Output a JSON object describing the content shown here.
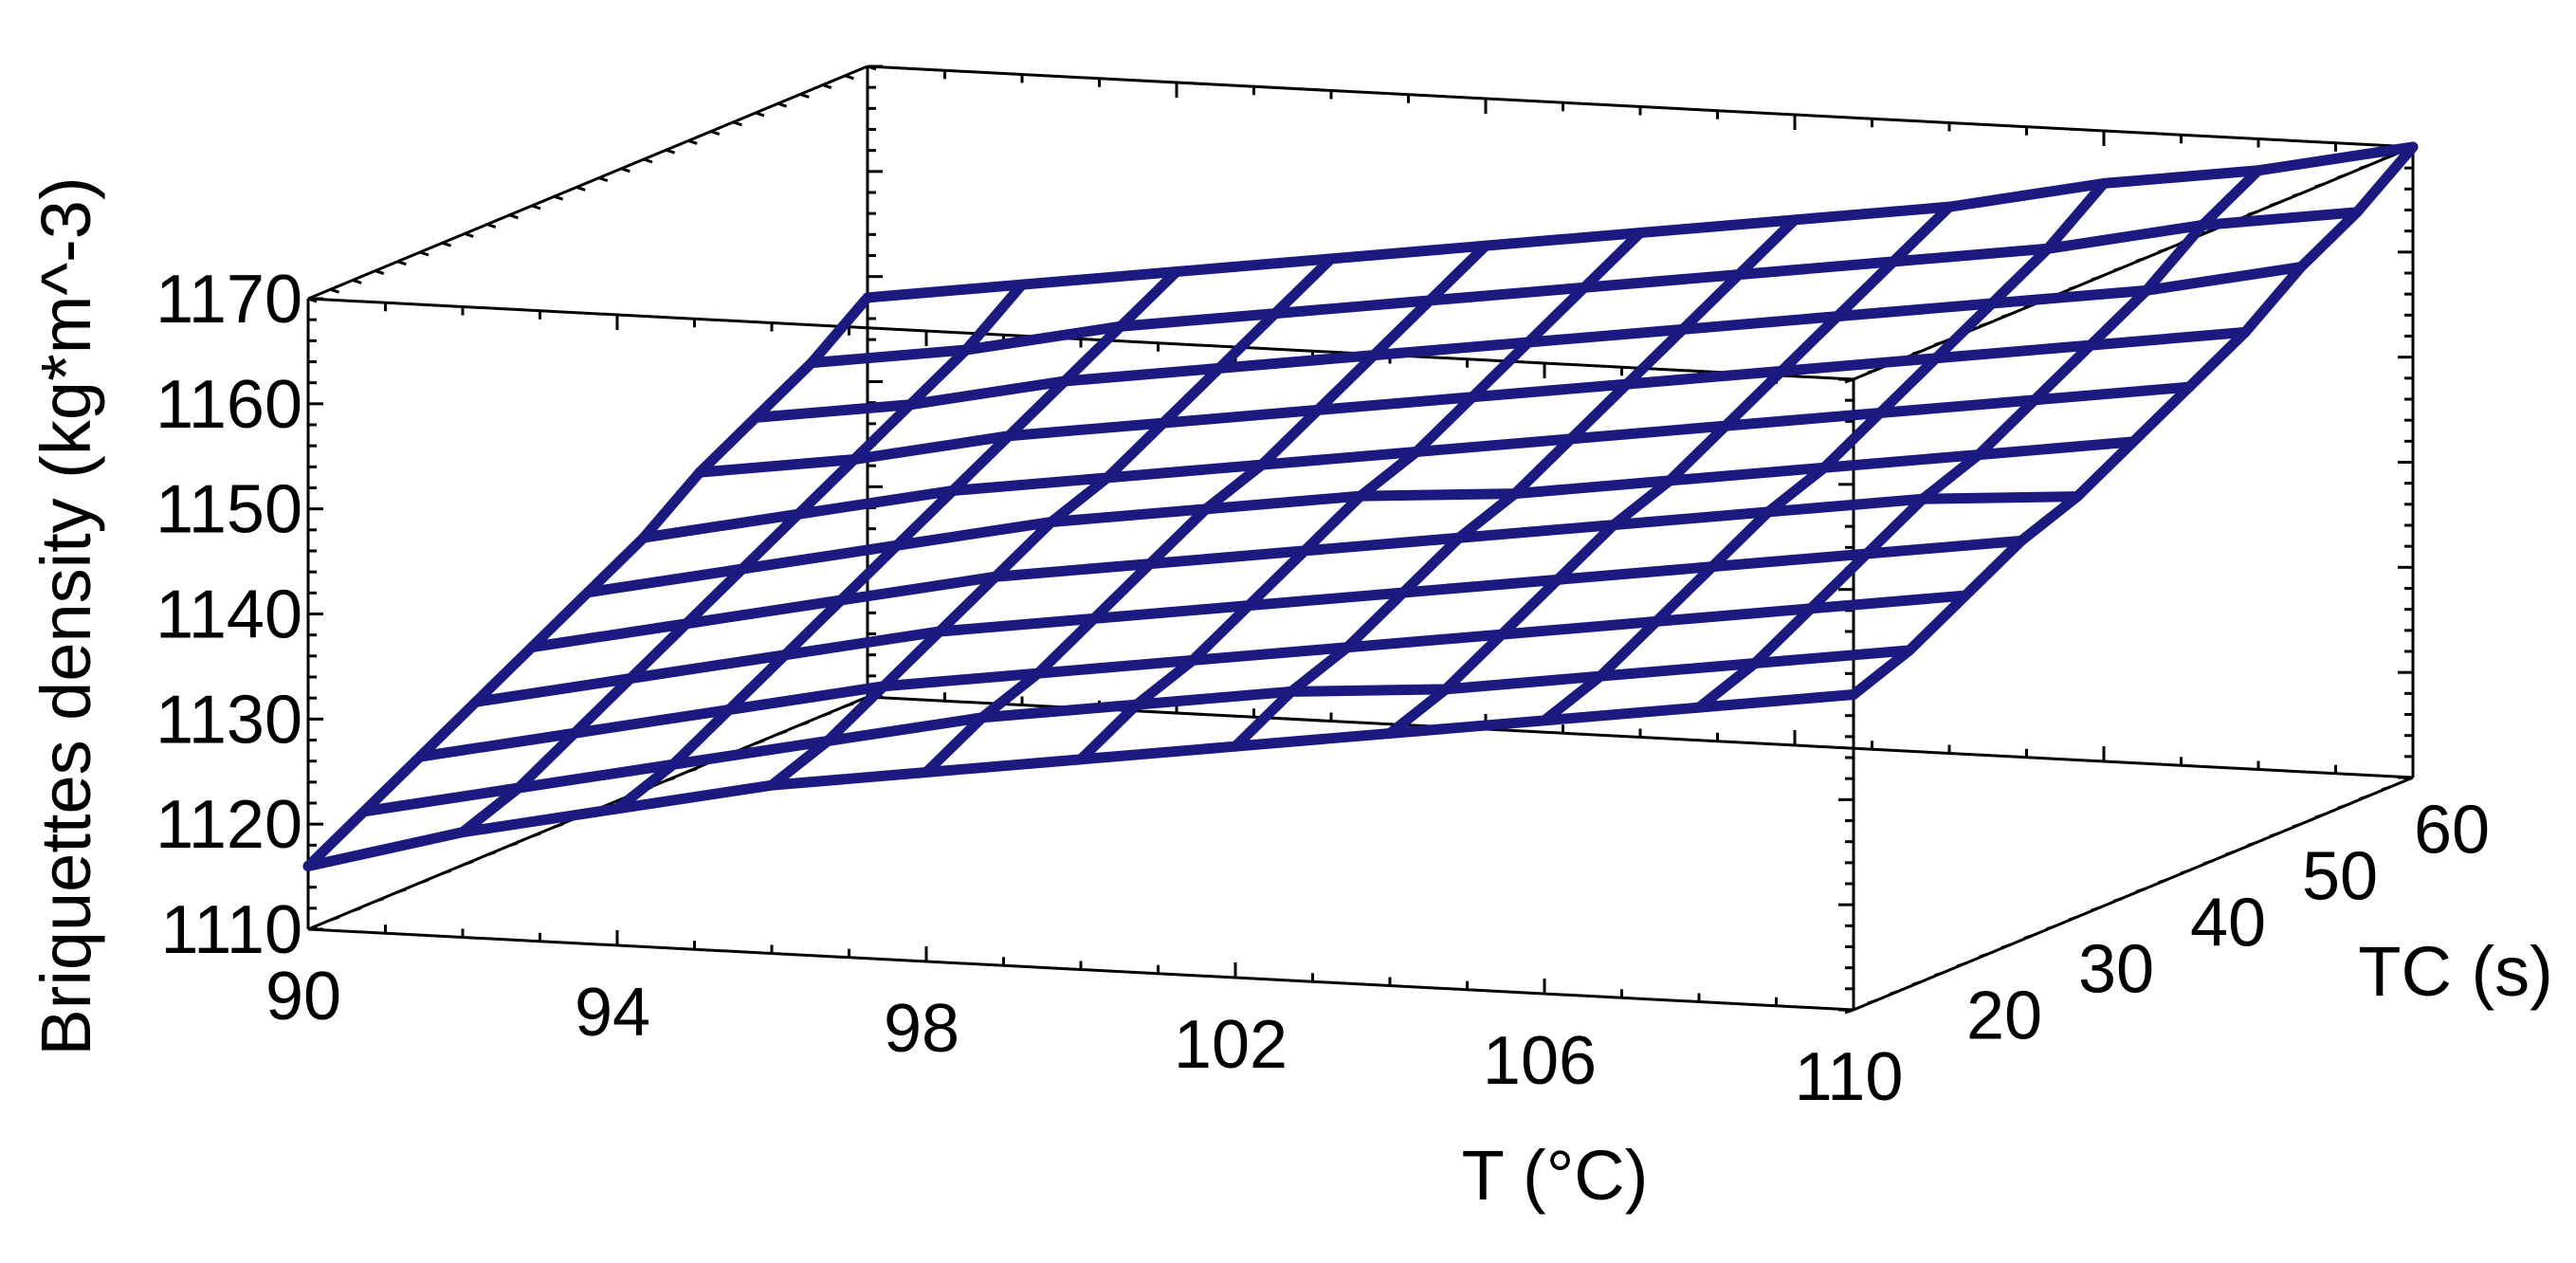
{
  "chart_data": {
    "type": "surface3d",
    "title": "",
    "xlabel": "T (°C)",
    "ylabel": "TC (s)",
    "zlabel": "Briquettes density (kg*m^-3)",
    "x_ticks": [
      "90",
      "94",
      "98",
      "102",
      "106",
      "110"
    ],
    "y_ticks": [
      "20",
      "30",
      "40",
      "50",
      "60"
    ],
    "z_ticks": [
      "1110",
      "1120",
      "1130",
      "1140",
      "1150",
      "1160",
      "1170"
    ],
    "xlim": [
      90,
      110
    ],
    "ylim": [
      15,
      65
    ],
    "zlim": [
      1110,
      1170
    ],
    "x": [
      90,
      92,
      94,
      96,
      98,
      100,
      102,
      104,
      106,
      108,
      110
    ],
    "y": [
      15,
      20,
      25,
      30,
      35,
      40,
      45,
      50,
      55,
      60,
      65
    ],
    "z_surface": {
      "description": "z[i][j] for x[i], y[j]",
      "corners": {
        "x90_y15": 1116,
        "x110_y15": 1140,
        "x90_y65": 1148,
        "x110_y65": 1170
      },
      "values": [
        [
          1116,
          1119,
          1122,
          1125,
          1128,
          1131,
          1134,
          1138,
          1141,
          1144,
          1148
        ],
        [
          1120,
          1122,
          1125,
          1128,
          1131,
          1134,
          1137,
          1140,
          1143,
          1146,
          1150
        ],
        [
          1123,
          1125,
          1128,
          1131,
          1134,
          1137,
          1140,
          1143,
          1146,
          1149,
          1152
        ],
        [
          1126,
          1128,
          1131,
          1134,
          1137,
          1140,
          1142,
          1145,
          1148,
          1151,
          1154
        ],
        [
          1128,
          1131,
          1133,
          1136,
          1139,
          1142,
          1144,
          1147,
          1150,
          1153,
          1156
        ],
        [
          1130,
          1133,
          1135,
          1138,
          1141,
          1144,
          1146,
          1149,
          1152,
          1155,
          1158
        ],
        [
          1132,
          1135,
          1137,
          1140,
          1143,
          1145,
          1148,
          1151,
          1154,
          1157,
          1160
        ],
        [
          1134,
          1136,
          1139,
          1142,
          1145,
          1147,
          1150,
          1153,
          1156,
          1159,
          1162
        ],
        [
          1136,
          1138,
          1141,
          1144,
          1147,
          1149,
          1152,
          1155,
          1158,
          1161,
          1165
        ],
        [
          1138,
          1140,
          1143,
          1146,
          1149,
          1151,
          1154,
          1157,
          1160,
          1164,
          1167
        ],
        [
          1140,
          1142,
          1145,
          1148,
          1150,
          1153,
          1156,
          1159,
          1163,
          1166,
          1170
        ]
      ]
    },
    "colors": {
      "surface": "#1a1a80",
      "box": "#000000"
    },
    "grid": false
  }
}
